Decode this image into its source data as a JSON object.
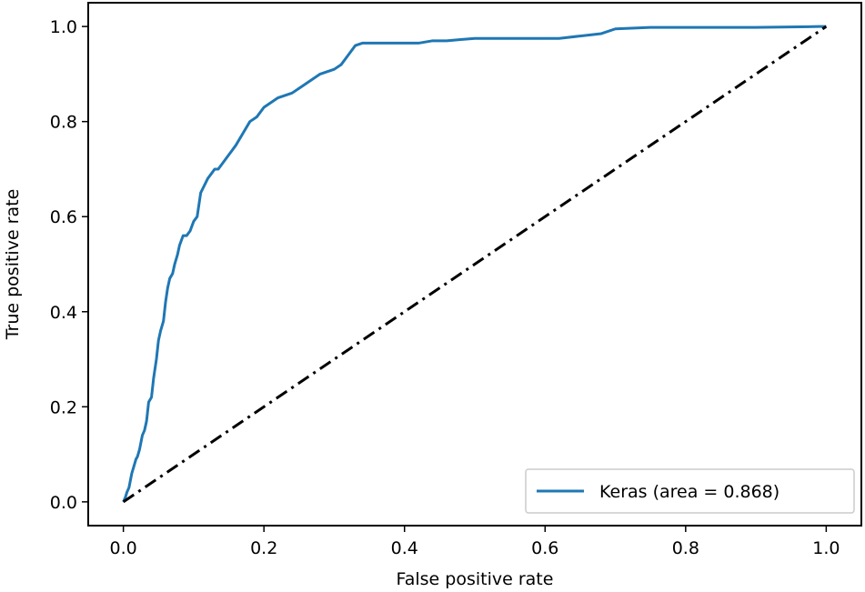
{
  "chart_data": {
    "type": "line",
    "title": "",
    "xlabel": "False positive rate",
    "ylabel": "True positive rate",
    "xlim": [
      -0.05,
      1.05
    ],
    "ylim": [
      -0.05,
      1.05
    ],
    "xticks": [
      {
        "value": 0.0,
        "label": "0.0"
      },
      {
        "value": 0.2,
        "label": "0.2"
      },
      {
        "value": 0.4,
        "label": "0.4"
      },
      {
        "value": 0.6,
        "label": "0.6"
      },
      {
        "value": 0.8,
        "label": "0.8"
      },
      {
        "value": 1.0,
        "label": "1.0"
      }
    ],
    "yticks": [
      {
        "value": 0.0,
        "label": "0.0"
      },
      {
        "value": 0.2,
        "label": "0.2"
      },
      {
        "value": 0.4,
        "label": "0.4"
      },
      {
        "value": 0.6,
        "label": "0.6"
      },
      {
        "value": 0.8,
        "label": "0.8"
      },
      {
        "value": 1.0,
        "label": "1.0"
      }
    ],
    "grid": false,
    "legend": {
      "placement": "lower-right"
    },
    "series": [
      {
        "name": "Keras (area = 0.868)",
        "color": "#1f77b4",
        "style": "solid",
        "x": [
          0.0,
          0.003,
          0.005,
          0.008,
          0.01,
          0.012,
          0.015,
          0.018,
          0.02,
          0.023,
          0.027,
          0.03,
          0.033,
          0.036,
          0.04,
          0.043,
          0.047,
          0.05,
          0.053,
          0.057,
          0.06,
          0.063,
          0.066,
          0.07,
          0.073,
          0.077,
          0.08,
          0.085,
          0.09,
          0.095,
          0.1,
          0.105,
          0.11,
          0.115,
          0.12,
          0.125,
          0.13,
          0.135,
          0.14,
          0.15,
          0.16,
          0.17,
          0.18,
          0.19,
          0.2,
          0.21,
          0.22,
          0.23,
          0.24,
          0.25,
          0.26,
          0.27,
          0.28,
          0.29,
          0.3,
          0.31,
          0.32,
          0.33,
          0.34,
          0.36,
          0.38,
          0.4,
          0.42,
          0.44,
          0.46,
          0.5,
          0.55,
          0.6,
          0.62,
          0.65,
          0.68,
          0.7,
          0.75,
          0.8,
          0.85,
          0.9,
          0.95,
          0.99,
          1.0
        ],
        "y": [
          0.0,
          0.01,
          0.02,
          0.03,
          0.045,
          0.06,
          0.075,
          0.09,
          0.095,
          0.11,
          0.14,
          0.15,
          0.17,
          0.21,
          0.22,
          0.26,
          0.3,
          0.34,
          0.36,
          0.38,
          0.42,
          0.45,
          0.47,
          0.48,
          0.5,
          0.52,
          0.54,
          0.56,
          0.56,
          0.57,
          0.59,
          0.6,
          0.65,
          0.665,
          0.68,
          0.69,
          0.7,
          0.7,
          0.71,
          0.73,
          0.75,
          0.775,
          0.8,
          0.81,
          0.83,
          0.84,
          0.85,
          0.855,
          0.86,
          0.87,
          0.88,
          0.89,
          0.9,
          0.905,
          0.91,
          0.92,
          0.94,
          0.96,
          0.965,
          0.965,
          0.965,
          0.965,
          0.965,
          0.97,
          0.97,
          0.975,
          0.975,
          0.975,
          0.975,
          0.98,
          0.985,
          0.995,
          0.998,
          0.998,
          0.998,
          0.998,
          0.999,
          1.0,
          1.0
        ]
      },
      {
        "name": "",
        "color": "#000000",
        "style": "dashdot",
        "x": [
          0.0,
          1.0
        ],
        "y": [
          0.0,
          1.0
        ]
      }
    ]
  }
}
